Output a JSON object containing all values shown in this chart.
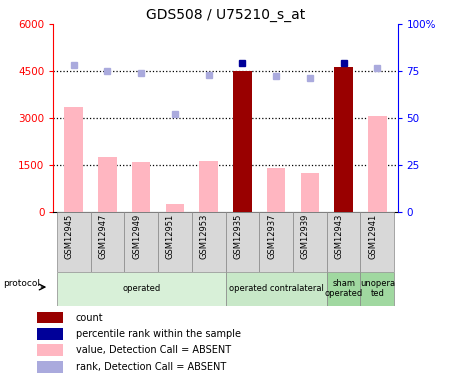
{
  "title": "GDS508 / U75210_s_at",
  "samples": [
    "GSM12945",
    "GSM12947",
    "GSM12949",
    "GSM12951",
    "GSM12953",
    "GSM12935",
    "GSM12937",
    "GSM12939",
    "GSM12943",
    "GSM12941"
  ],
  "values": [
    3350,
    1750,
    1600,
    250,
    1620,
    4520,
    1400,
    1230,
    4650,
    3080
  ],
  "ranks_pct": [
    78.5,
    74.9,
    73.9,
    52.2,
    73.0,
    79.2,
    72.3,
    71.5,
    79.3,
    77.0
  ],
  "count_present": [
    false,
    false,
    false,
    false,
    false,
    true,
    false,
    false,
    true,
    false
  ],
  "ylim_left": [
    0,
    6000
  ],
  "ylim_right": [
    0,
    100
  ],
  "left_ticks": [
    0,
    1500,
    3000,
    4500,
    6000
  ],
  "right_ticks": [
    0,
    25,
    50,
    75,
    100
  ],
  "groups": [
    {
      "label": "operated",
      "start": 0,
      "end": 4,
      "color": "#d8f0d8"
    },
    {
      "label": "operated contralateral",
      "start": 5,
      "end": 7,
      "color": "#c8e8c8"
    },
    {
      "label": "sham\noperated",
      "start": 8,
      "end": 8,
      "color": "#a0d8a0"
    },
    {
      "label": "unopera\nted",
      "start": 9,
      "end": 9,
      "color": "#a0d8a0"
    }
  ],
  "legend_items": [
    {
      "color": "#990000",
      "marker": "s",
      "label": "count"
    },
    {
      "color": "#000099",
      "marker": "s",
      "label": "percentile rank within the sample"
    },
    {
      "color": "#FFB6C1",
      "marker": "s",
      "label": "value, Detection Call = ABSENT"
    },
    {
      "color": "#aaaadd",
      "marker": "s",
      "label": "rank, Detection Call = ABSENT"
    }
  ],
  "bar_color_absent": "#FFB6C1",
  "bar_color_present": "#990000",
  "rank_color_absent": "#aaaadd",
  "rank_color_present": "#000099",
  "title_fontsize": 10
}
